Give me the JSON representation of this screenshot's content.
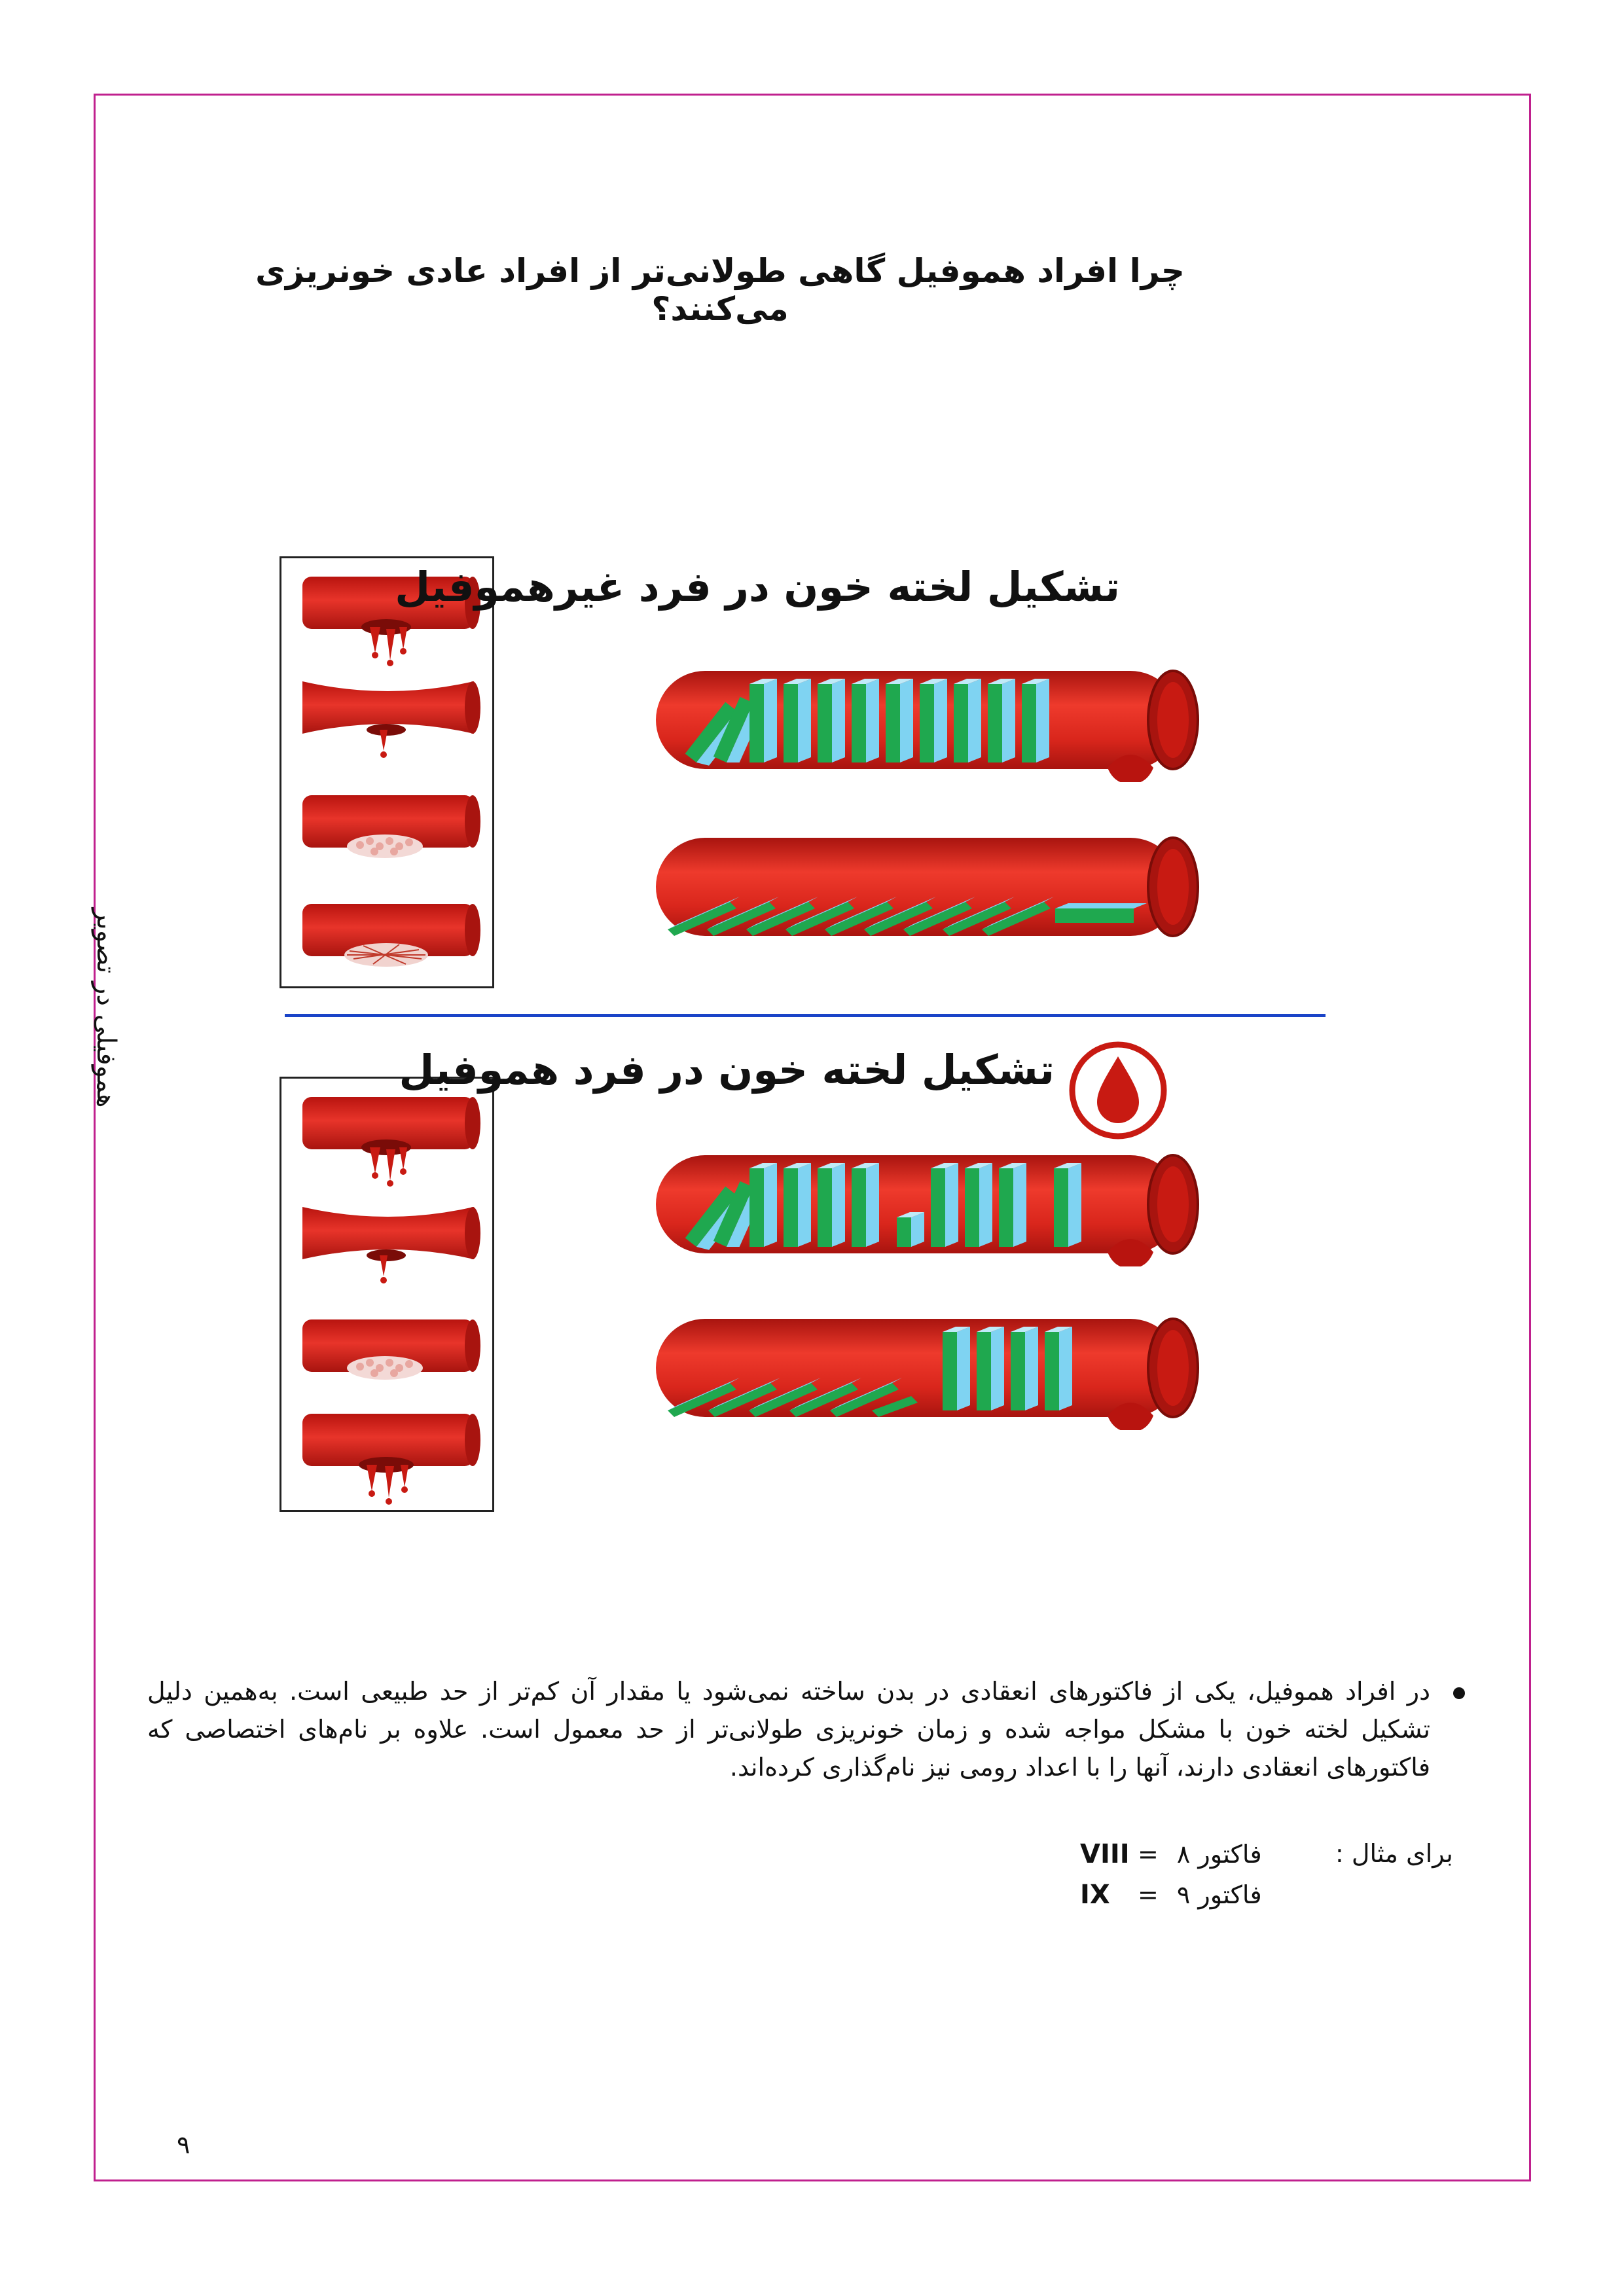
{
  "title": "چرا افراد هموفیل گاهی طولانی‌تر از افراد عادی خونریزی می‌کنند؟",
  "side_label": "هموفیلی در تصویر",
  "section_non_hemophilic": {
    "title": "تشکیل لخته خون در فرد غیرهموفیل"
  },
  "section_hemophilic": {
    "title": "تشکیل لخته خون در فرد هموفیل",
    "badge_icon": "blood-drop-icon"
  },
  "colors": {
    "frame": "#c0208e",
    "vessel_red": "#d9261c",
    "vessel_dark": "#a8140f",
    "domino_green": "#1fa84f",
    "domino_blue": "#7fd3f2",
    "divider_blue": "#1a44c8"
  },
  "paragraph": "در افراد هموفیل، یکی از فاکتورهای انعقادی در بدن ساخته نمی‌شود یا مقدار آن کم‌تر از حد طبیعی است. به‌همین دلیل تشکیل لخته خون با مشکل مواجه شده و زمان خونریزی طولانی‌تر از حد معمول است. علاوه بر نام‌های اختصاصی که فاکتورهای انعقادی دارند، آنها را با اعداد رومی نیز نام‌گذاری کرده‌اند.",
  "examples": {
    "label": "برای مثال :",
    "items": [
      {
        "name": "فاکتور ۸",
        "eq": "=",
        "roman": "VIII"
      },
      {
        "name": "فاکتور ۹",
        "eq": "=",
        "roman": "IX"
      }
    ]
  },
  "page_number": "۹"
}
